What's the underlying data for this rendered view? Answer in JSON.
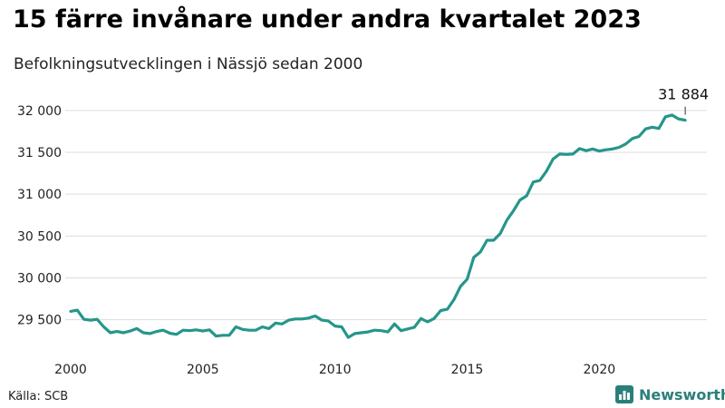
{
  "header": {
    "title": "15 färre invånare under andra kvartalet 2023",
    "subtitle": "Befolkningsutvecklingen i Nässjö sedan 2000"
  },
  "footer": {
    "source": "Källa: SCB",
    "brand_name": "Newsworthy",
    "brand_icon": "bar-chart-logo-icon"
  },
  "colors": {
    "line": "#25968a",
    "grid": "#dddddd",
    "brand": "#2b7f7a"
  },
  "chart_data": {
    "type": "line",
    "title": "15 färre invånare under andra kvartalet 2023",
    "subtitle": "Befolkningsutvecklingen i Nässjö sedan 2000",
    "xlabel": "",
    "ylabel": "",
    "xlim": [
      2000,
      2024
    ],
    "ylim": [
      29150,
      32150
    ],
    "x_ticks": [
      2000,
      2005,
      2010,
      2015,
      2020
    ],
    "x_tick_labels": [
      "2000",
      "2005",
      "2010",
      "2015",
      "2020"
    ],
    "y_ticks": [
      29500,
      30000,
      30500,
      31000,
      31500,
      32000
    ],
    "y_tick_labels": [
      "29 500",
      "30 000",
      "30 500",
      "31 000",
      "31 500",
      "32 000"
    ],
    "grid": true,
    "legend": "none",
    "series": [
      {
        "x": [
          2000.0,
          2000.25,
          2000.5,
          2000.75,
          2001.0,
          2001.25,
          2001.5,
          2001.75,
          2002.0,
          2002.25,
          2002.5,
          2002.75,
          2003.0,
          2003.25,
          2003.5,
          2003.75,
          2004.0,
          2004.25,
          2004.5,
          2004.75,
          2005.0,
          2005.25,
          2005.5,
          2005.75,
          2006.0,
          2006.25,
          2006.5,
          2006.75,
          2007.0,
          2007.25,
          2007.5,
          2007.75,
          2008.0,
          2008.25,
          2008.5,
          2008.75,
          2009.0,
          2009.25,
          2009.5,
          2009.75,
          2010.0,
          2010.25,
          2010.5,
          2010.75,
          2011.0,
          2011.25,
          2011.5,
          2011.75,
          2012.0,
          2012.25,
          2012.5,
          2012.75,
          2013.0,
          2013.25,
          2013.5,
          2013.75,
          2014.0,
          2014.25,
          2014.5,
          2014.75,
          2015.0,
          2015.25,
          2015.5,
          2015.75,
          2016.0,
          2016.25,
          2016.5,
          2016.75,
          2017.0,
          2017.25,
          2017.5,
          2017.75,
          2018.0,
          2018.25,
          2018.5,
          2018.75,
          2019.0,
          2019.25,
          2019.5,
          2019.75,
          2020.0,
          2020.25,
          2020.5,
          2020.75,
          2021.0,
          2021.25,
          2021.5,
          2021.75,
          2022.0,
          2022.25,
          2022.5,
          2022.75,
          2023.0,
          2023.25
        ],
        "values": [
          29600,
          29615,
          29505,
          29495,
          29505,
          29415,
          29345,
          29360,
          29345,
          29365,
          29395,
          29345,
          29335,
          29360,
          29375,
          29340,
          29325,
          29375,
          29370,
          29380,
          29365,
          29380,
          29305,
          29315,
          29315,
          29415,
          29385,
          29375,
          29375,
          29415,
          29395,
          29460,
          29450,
          29495,
          29510,
          29510,
          29520,
          29545,
          29495,
          29485,
          29425,
          29415,
          29290,
          29335,
          29345,
          29355,
          29375,
          29370,
          29355,
          29450,
          29370,
          29390,
          29410,
          29515,
          29475,
          29515,
          29610,
          29625,
          29740,
          29900,
          29985,
          30245,
          30310,
          30450,
          30450,
          30530,
          30690,
          30800,
          30930,
          30980,
          31145,
          31165,
          31275,
          31420,
          31480,
          31475,
          31480,
          31545,
          31520,
          31540,
          31515,
          31530,
          31540,
          31560,
          31600,
          31665,
          31690,
          31780,
          31800,
          31785,
          31925,
          31945,
          31899,
          31884
        ]
      }
    ],
    "annotations": [
      {
        "x": 2023.25,
        "y": 31884,
        "text": "31 884"
      }
    ]
  }
}
